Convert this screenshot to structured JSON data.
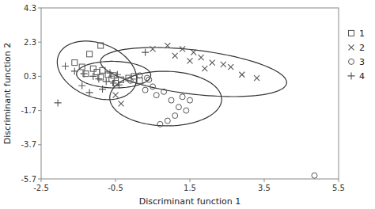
{
  "chart_data": {
    "type": "scatter",
    "xlabel": "Discriminant function 1",
    "ylabel": "Discriminant function 2",
    "xlim": [
      -2.5,
      5.5
    ],
    "ylim": [
      -5.7,
      4.3
    ],
    "xticks": [
      -2.5,
      -0.5,
      1.5,
      3.5,
      5.5
    ],
    "yticks": [
      -5.7,
      -3.7,
      -1.7,
      0.3,
      2.3,
      4.3
    ],
    "legend": "right",
    "series": [
      {
        "name": "1",
        "marker": "square",
        "color": "#555555",
        "x": [
          -0.9,
          -1.2,
          -1.6,
          -1.4,
          -1.1,
          -0.85,
          -1.0,
          -1.3,
          -0.7,
          -0.55,
          -0.9,
          -0.6,
          -0.35,
          -0.15,
          0.0,
          -0.5,
          0.15
        ],
        "values": [
          2.1,
          1.6,
          1.1,
          0.85,
          0.75,
          0.65,
          0.55,
          0.45,
          0.4,
          0.35,
          0.25,
          0.15,
          0.1,
          0.2,
          0.3,
          -0.1,
          0.05
        ]
      },
      {
        "name": "2",
        "marker": "x",
        "color": "#555555",
        "x": [
          0.5,
          0.9,
          1.3,
          1.6,
          1.1,
          1.8,
          1.5,
          2.1,
          2.4,
          2.6,
          1.9,
          2.9,
          3.3,
          -0.35,
          -0.5
        ],
        "values": [
          1.9,
          2.1,
          1.9,
          1.7,
          1.5,
          1.4,
          1.2,
          1.1,
          1.0,
          0.85,
          0.75,
          0.4,
          0.2,
          -1.3,
          -0.8
        ]
      },
      {
        "name": "3",
        "marker": "circle",
        "color": "#555555",
        "x": [
          0.4,
          -0.1,
          0.15,
          0.35,
          0.8,
          1.0,
          1.2,
          1.4,
          1.1,
          0.9,
          0.7,
          1.5,
          0.5,
          4.85,
          0.6,
          1.3,
          0.3
        ],
        "values": [
          0.1,
          0.05,
          0.35,
          0.2,
          -0.6,
          -1.1,
          -1.5,
          -1.7,
          -2.0,
          -2.3,
          -2.5,
          -1.1,
          -0.3,
          -5.5,
          -0.8,
          -0.9,
          -0.5
        ]
      },
      {
        "name": "4",
        "marker": "plus",
        "color": "#555555",
        "x": [
          -1.85,
          -1.6,
          -1.35,
          -1.1,
          -0.95,
          -0.75,
          -0.55,
          -1.4,
          -0.4,
          -0.85,
          -1.2,
          -2.05,
          -0.65,
          -0.45,
          0.3
        ],
        "values": [
          0.9,
          0.6,
          0.45,
          0.3,
          0.15,
          0.0,
          -0.1,
          -0.25,
          -0.2,
          -0.45,
          -0.65,
          -1.25,
          0.5,
          0.4,
          1.7
        ]
      }
    ],
    "ellipses": [
      {
        "cx": -1.0,
        "cy": 0.65,
        "width": 2.0,
        "height": 3.5,
        "angle": 15,
        "color": "#333333"
      },
      {
        "cx": -0.55,
        "cy": 0.4,
        "width": 2.0,
        "height": 1.55,
        "angle": -5,
        "color": "#333333"
      },
      {
        "cx": 1.6,
        "cy": 0.55,
        "width": 5.2,
        "height": 2.5,
        "angle": -18,
        "color": "#333333"
      },
      {
        "cx": 0.85,
        "cy": -1.0,
        "width": 3.0,
        "height": 3.2,
        "angle": 12,
        "color": "#333333"
      }
    ]
  }
}
